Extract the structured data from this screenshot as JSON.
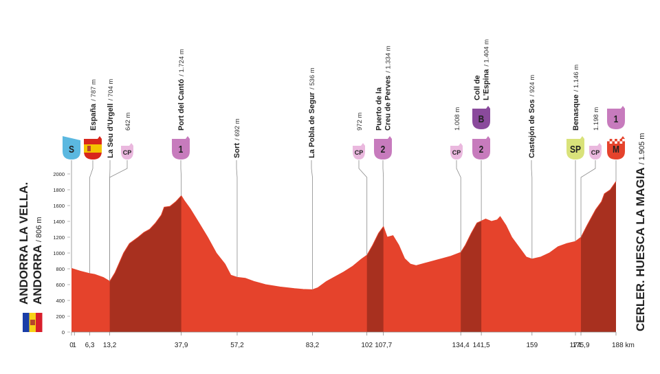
{
  "chart_data": {
    "type": "area",
    "x": [
      0,
      3,
      6.3,
      8,
      11,
      13.2,
      15,
      18,
      20,
      23,
      25,
      27,
      29,
      31,
      32,
      34,
      36,
      37.9,
      39,
      41,
      44,
      47,
      50,
      53,
      55,
      57.2,
      60,
      63,
      67,
      72,
      77,
      80,
      83.2,
      85,
      88,
      91,
      94,
      97,
      100,
      102,
      104,
      106,
      107.7,
      109,
      111,
      113,
      115,
      117,
      119,
      122,
      125,
      128,
      131,
      134.4,
      136,
      138,
      140,
      141.5,
      143,
      145,
      147,
      148,
      150,
      152,
      155,
      157,
      159,
      162,
      165,
      168,
      171,
      174,
      175.9,
      178,
      181,
      183,
      184,
      186,
      188
    ],
    "values": [
      806,
      770,
      740,
      730,
      690,
      642,
      750,
      1000,
      1120,
      1200,
      1260,
      1300,
      1380,
      1480,
      1580,
      1590,
      1650,
      1724,
      1660,
      1560,
      1380,
      1200,
      1000,
      860,
      720,
      692,
      680,
      640,
      600,
      570,
      550,
      540,
      536,
      560,
      640,
      700,
      760,
      830,
      920,
      972,
      1100,
      1250,
      1334,
      1200,
      1220,
      1100,
      930,
      860,
      840,
      870,
      900,
      930,
      960,
      1008,
      1100,
      1250,
      1380,
      1404,
      1430,
      1400,
      1420,
      1460,
      1350,
      1200,
      1050,
      950,
      924,
      950,
      1000,
      1080,
      1120,
      1146,
      1198,
      1350,
      1550,
      1650,
      1750,
      1800,
      1905
    ],
    "color": "#e5432c",
    "climb_color": "#a8301f",
    "xlim": [
      0,
      188
    ],
    "ylim": [
      0,
      2000
    ],
    "yticks": [
      0,
      200,
      400,
      600,
      800,
      1000,
      1200,
      1400,
      1600,
      1800,
      2000
    ],
    "xticks": [
      0,
      1,
      {
        "value": 6.3,
        "label": "6,3"
      },
      {
        "value": 13.2,
        "label": "13,2"
      },
      {
        "value": 37.9,
        "label": "37,9"
      },
      {
        "value": 57.2,
        "label": "57,2"
      },
      {
        "value": 83.2,
        "label": "83,2"
      },
      102,
      {
        "value": 107.7,
        "label": "107,7"
      },
      {
        "value": 134.4,
        "label": "134,4"
      },
      {
        "value": 141.5,
        "label": "141,5"
      },
      159,
      174,
      {
        "value": 175.9,
        "label": "175,9"
      },
      {
        "value": 188,
        "label": "188 km"
      }
    ],
    "start": {
      "lines": [
        "ANDORRA LA VELLA.",
        "ANDORRA"
      ],
      "altitude": "/ 806 m"
    },
    "finish": {
      "lines": [
        "CERLER. HUESCA LA MAGIA"
      ],
      "altitude": "/ 1.905 m"
    },
    "waypoints": [
      {
        "badges": [
          {
            "text": "S",
            "color": "#5bb8e0",
            "shape": "flag"
          }
        ]
      },
      {
        "lines": [
          "España"
        ],
        "altitude": "/ 787 m",
        "badges": [
          {
            "shape": "spain"
          }
        ]
      },
      {
        "lines": [
          "La Seu d'Urgell"
        ],
        "altitude": "/ 704 m"
      },
      {
        "altitude": "642 m",
        "badges": [
          {
            "text": "CP",
            "color": "#eab8de",
            "shape": "cp"
          }
        ]
      },
      {
        "lines": [
          "Port del Cantó"
        ],
        "altitude": "/ 1.724 m",
        "badges": [
          {
            "text": "1",
            "color": "#c77bbd",
            "shape": "cat"
          }
        ]
      },
      {
        "lines": [
          "Sort"
        ],
        "altitude": "/ 692 m"
      },
      {
        "lines": [
          "La Pobla de Segur"
        ],
        "altitude": "/ 536 m"
      },
      {
        "altitude": "972 m",
        "badges": [
          {
            "text": "CP",
            "color": "#eab8de",
            "shape": "cp"
          }
        ]
      },
      {
        "lines": [
          "Puerto de la",
          "Creu de Perves"
        ],
        "altitude": "/ 1.334 m",
        "badges": [
          {
            "text": "2",
            "color": "#c77bbd",
            "shape": "cat"
          }
        ]
      },
      {
        "altitude": "1.008 m",
        "badges": [
          {
            "text": "CP",
            "color": "#eab8de",
            "shape": "cp"
          }
        ]
      },
      {
        "lines": [
          "Coll de",
          "L'Espina"
        ],
        "altitude": "/ 1.404 m",
        "badges": [
          {
            "text": "B",
            "color": "#8a4a9c",
            "shape": "cat"
          },
          {
            "text": "2",
            "color": "#c77bbd",
            "shape": "cat"
          }
        ]
      },
      {
        "lines": [
          "Castejón de Sos"
        ],
        "altitude": "/ 924 m"
      },
      {
        "lines": [
          "Benasque"
        ],
        "altitude": "/ 1.146 m",
        "badges": [
          {
            "text": "SP",
            "color": "#d9e27a",
            "text_color": "#333333",
            "shape": "cat"
          }
        ]
      },
      {
        "altitude": "1.198 m",
        "badges": [
          {
            "text": "CP",
            "color": "#eab8de",
            "shape": "cp"
          }
        ]
      },
      {
        "badges": [
          {
            "text": "1",
            "color": "#c77bbd",
            "shape": "cat"
          },
          {
            "text": "M",
            "color": "#e5432c",
            "shape": "checker"
          }
        ]
      }
    ]
  }
}
